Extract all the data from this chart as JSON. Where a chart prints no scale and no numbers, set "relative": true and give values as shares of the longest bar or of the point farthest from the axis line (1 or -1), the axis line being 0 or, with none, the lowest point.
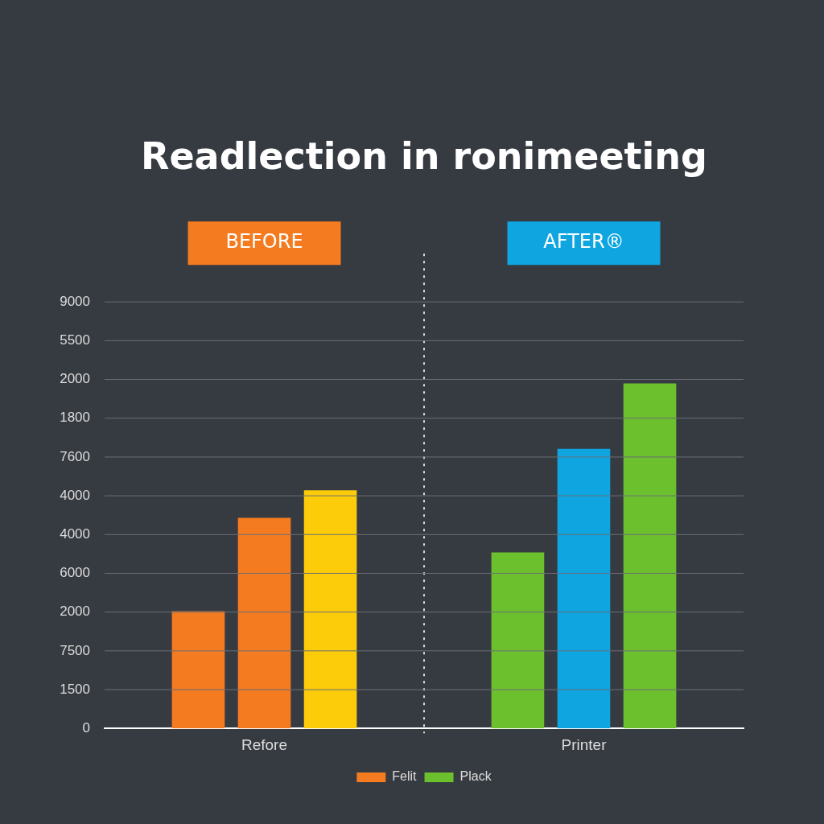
{
  "chart_data": {
    "type": "bar",
    "title": "Readlection in ronimeeting",
    "categories": [
      "Refore",
      "Printer"
    ],
    "series": [
      {
        "name": "Felit",
        "color": "#f47b20",
        "colors": [
          "#f47b20",
          "#6cc02e"
        ],
        "values": [
          0.34,
          0.51
        ]
      },
      {
        "colors": [
          "#f47b20",
          "#0ea5e0"
        ],
        "values": [
          0.61,
          0.81
        ]
      },
      {
        "name": "Plack",
        "color": "#6cc02e",
        "colors": [
          "#fccb0a",
          "#6cc02e"
        ],
        "values": [
          0.69,
          1
        ]
      }
    ],
    "relative": true,
    "legend": "bottom",
    "annotations": [
      "BEFORE",
      "AFTER®",
      "9000",
      "5500",
      "2000",
      "1800",
      "7600",
      "4000",
      "4000",
      "6000",
      "2000",
      "7500",
      "1500",
      "0"
    ]
  }
}
